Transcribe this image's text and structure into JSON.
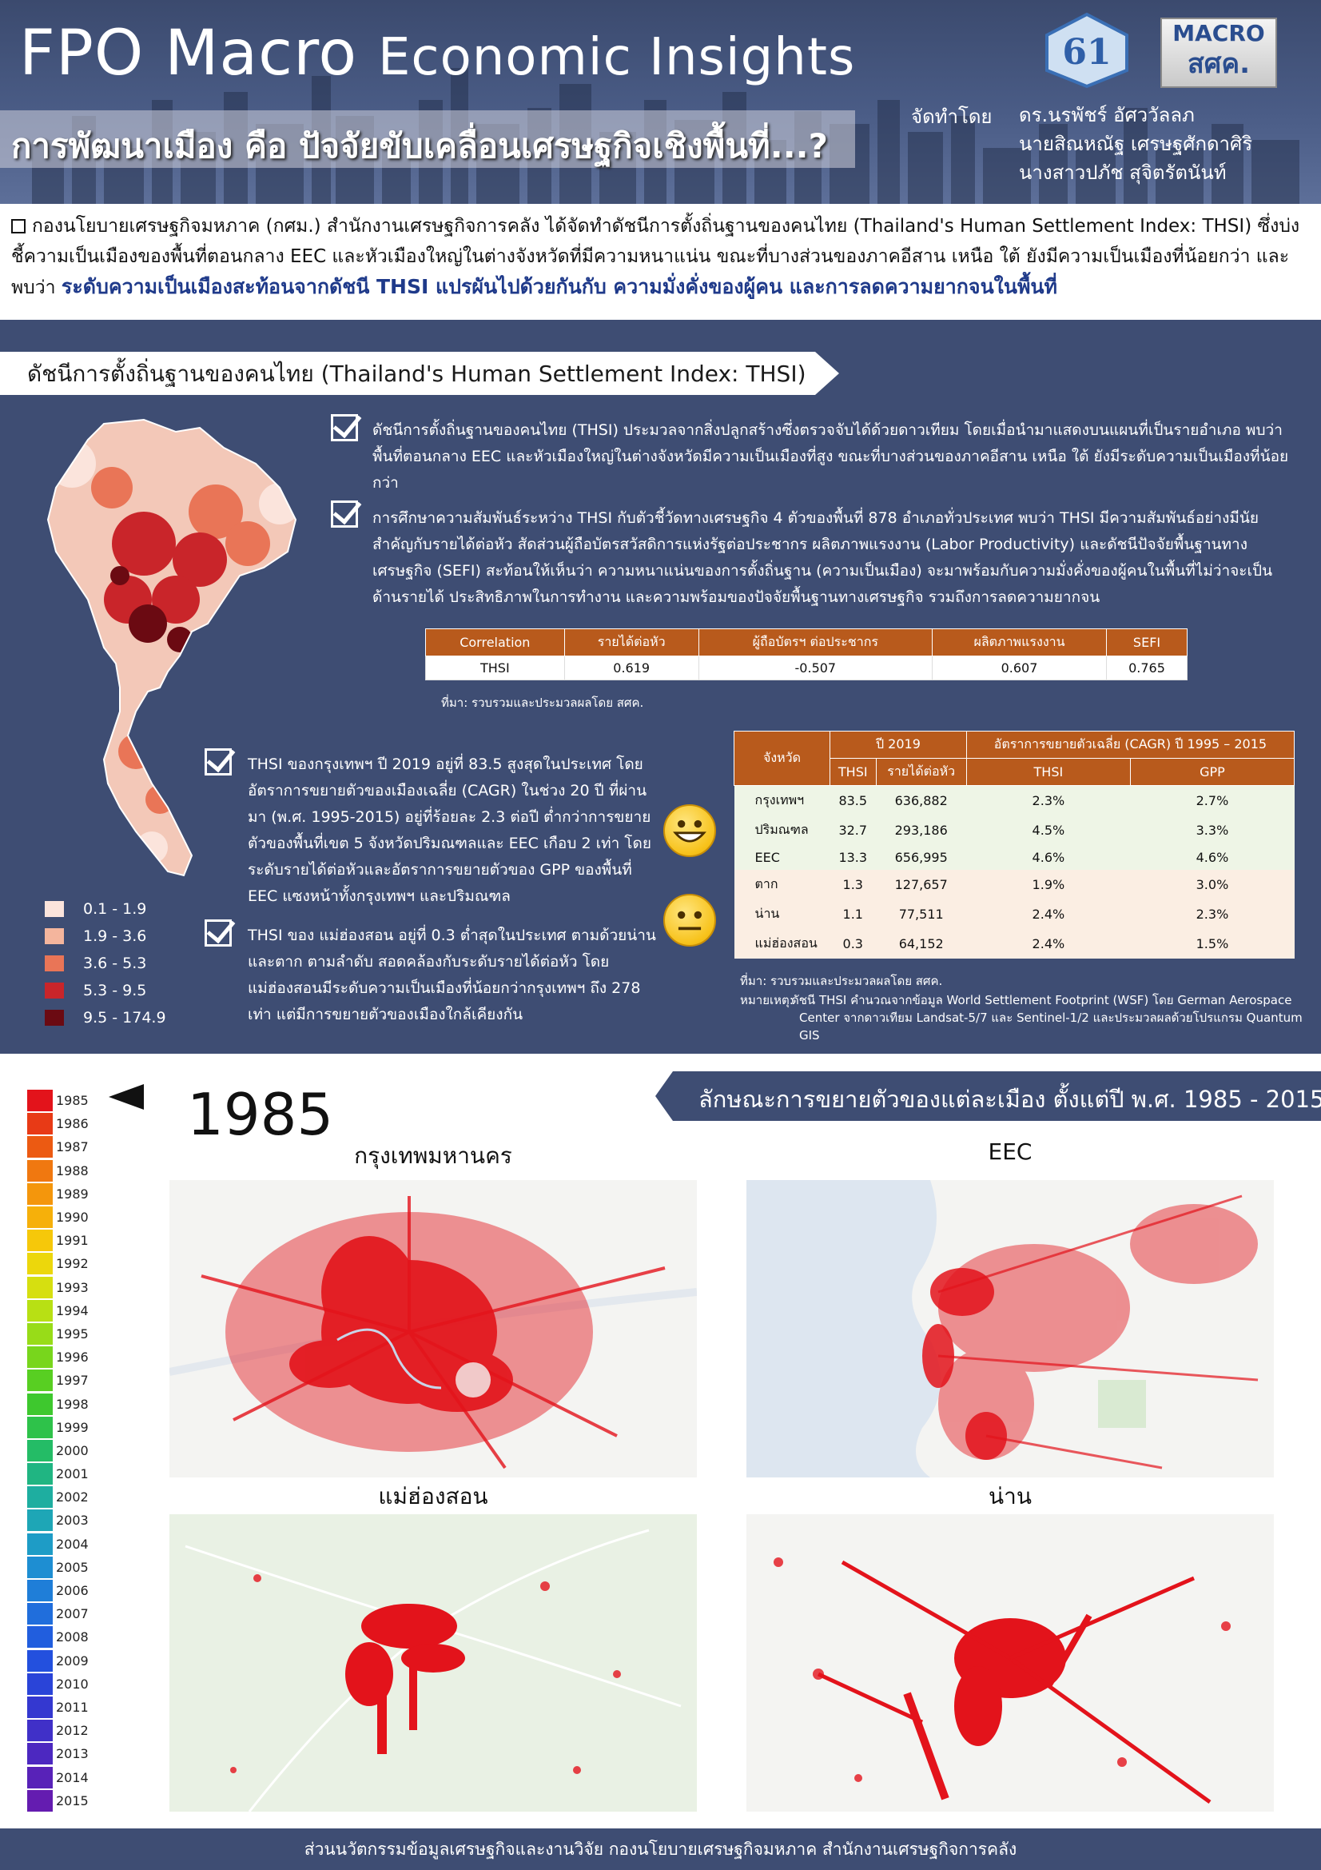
{
  "header": {
    "title_bold": "FPO Macro",
    "title_light": "Economic Insights",
    "subtitle": "การพัฒนาเมือง คือ ปัจจัยขับเคลื่อนเศรษฐกิจเชิงพื้นที่...?",
    "logo_61": "61",
    "logo_macro_top": "MACRO",
    "logo_macro_bottom": "สศค.",
    "by_label": "จัดทำโดย",
    "authors": [
      "ดร.นรพัชร์ อัศววัลลภ",
      "นายสิณหณัฐ เศรษฐศักดาศิริ",
      "นางสาวปภัช สุจิตรัตนันท์"
    ]
  },
  "intro": {
    "text": "กองนโยบายเศรษฐกิจมหภาค (กศม.) สำนักงานเศรษฐกิจการคลัง ได้จัดทำดัชนีการตั้งถิ่นฐานของคนไทย (Thailand's Human Settlement Index: THSI) ซึ่งบ่งชี้ความเป็นเมืองของพื้นที่ตอนกลาง EEC และหัวเมืองใหญ่ในต่างจังหวัดที่มีความหนาแน่น ขณะที่บางส่วนของภาคอีสาน เหนือ ใต้ ยังมีความเป็นเมืองที่น้อยกว่า และพบว่า ",
    "highlight": "ระดับความเป็นเมืองสะท้อนจากดัชนี THSI แปรผันไปด้วยกันกับ ความมั่งคั่งของผู้คน และการลดความยากจนในพื้นที่"
  },
  "section1": {
    "title": "ดัชนีการตั้งถิ่นฐานของคนไทย (Thailand's Human Settlement Index: THSI)",
    "bullet1": "ดัชนีการตั้งถิ่นฐานของคนไทย (THSI) ประมวลจากสิ่งปลูกสร้างซึ่งตรวจจับได้ด้วยดาวเทียม โดยเมื่อนำมาแสดงบนแผนที่เป็นรายอำเภอ พบว่า พื้นที่ตอนกลาง EEC และหัวเมืองใหญ่ในต่างจังหวัดมีความเป็นเมืองที่สูง ขณะที่บางส่วนของภาคอีสาน เหนือ ใต้ ยังมีระดับความเป็นเมืองที่น้อยกว่า",
    "bullet2": "การศึกษาความสัมพันธ์ระหว่าง THSI กับตัวชี้วัดทางเศรษฐกิจ 4 ตัวของพื้นที่ 878 อำเภอทั่วประเทศ พบว่า THSI มีความสัมพันธ์อย่างมีนัยสำคัญกับรายได้ต่อหัว สัดส่วนผู้ถือบัตรสวัสดิการแห่งรัฐต่อประชากร ผลิตภาพแรงงาน (Labor Productivity) และดัชนีปัจจัยพื้นฐานทางเศรษฐกิจ (SEFI) สะท้อนให้เห็นว่า ความหนาแน่นของการตั้งถิ่นฐาน (ความเป็นเมือง) จะมาพร้อมกับความมั่งคั่งของผู้คนในพื้นที่ไม่ว่าจะเป็นด้านรายได้ ประสิทธิภาพในการทำงาน และความพร้อมของปัจจัยพื้นฐานทางเศรษฐกิจ รวมถึงการลดความยากจน",
    "corr_table": {
      "headers": [
        "Correlation",
        "รายได้ต่อหัว",
        "ผู้ถือบัตรฯ ต่อประชากร",
        "ผลิตภาพแรงงาน",
        "SEFI"
      ],
      "row": [
        "THSI",
        "0.619",
        "-0.507",
        "0.607",
        "0.765"
      ]
    },
    "corr_source": "ที่มา: รวบรวมและประมวลผลโดย สศค.",
    "bullet3": "THSI ของกรุงเทพฯ ปี 2019 อยู่ที่ 83.5 สูงสุดในประเทศ โดยอัตราการขยายตัวของเมืองเฉลี่ย (CAGR) ในช่วง 20 ปี ที่ผ่านมา (พ.ศ. 1995-2015) อยู่ที่ร้อยละ 2.3 ต่อปี ต่ำกว่าการขยายตัวของพื้นที่เขต 5 จังหวัดปริมณฑลและ EEC เกือบ 2 เท่า โดยระดับรายได้ต่อหัวและอัตราการขยายตัวของ GPP ของพื้นที่ EEC แซงหน้าทั้งกรุงเทพฯ และปริมณฑล",
    "bullet4": "THSI ของ แม่ฮ่องสอน อยู่ที่ 0.3 ต่ำสุดในประเทศ ตามด้วยน่านและตาก ตามลำดับ สอดคล้องกับระดับรายได้ต่อหัว โดยแม่ฮ่องสอนมีระดับความเป็นเมืองที่น้อยกว่ากรุงเทพฯ ถึง 278 เท่า แต่มีการขยายตัวของเมืองใกล้เคียงกัน",
    "prov_table": {
      "h_province": "จังหวัด",
      "h_2019": "ปี 2019",
      "h_cagr": "อัตราการขยายตัวเฉลี่ย (CAGR) ปี 1995 – 2015",
      "sub": [
        "THSI",
        "รายได้ต่อหัว",
        "THSI",
        "GPP"
      ],
      "rows": [
        [
          "กรุงเทพฯ",
          "83.5",
          "636,882",
          "2.3%",
          "2.7%"
        ],
        [
          "ปริมณฑล",
          "32.7",
          "293,186",
          "4.5%",
          "3.3%"
        ],
        [
          "EEC",
          "13.3",
          "656,995",
          "4.6%",
          "4.6%"
        ],
        [
          "ตาก",
          "1.3",
          "127,657",
          "1.9%",
          "3.0%"
        ],
        [
          "น่าน",
          "1.1",
          "77,511",
          "2.4%",
          "2.3%"
        ],
        [
          "แม่ฮ่องสอน",
          "0.3",
          "64,152",
          "2.4%",
          "1.5%"
        ]
      ]
    },
    "prov_source": "ที่มา: รวบรวมและประมวลผลโดย สศค.",
    "prov_note_label": "หมายเหตุ:",
    "prov_note_1": "ดัชนี THSI คำนวณจากข้อมูล World Settlement Footprint (WSF) โดย German Aerospace",
    "prov_note_2": "Center จากดาวเทียม Landsat-5/7 และ Sentinel-1/2 และประมวลผลด้วยโปรแกรม Quantum GIS",
    "legend": [
      {
        "label": "0.1 - 1.9",
        "color": "#fbe4dc"
      },
      {
        "label": "1.9 - 3.6",
        "color": "#f4b59d"
      },
      {
        "label": "3.6 - 5.3",
        "color": "#e97557"
      },
      {
        "label": "5.3 - 9.5",
        "color": "#c9252a"
      },
      {
        "label": "9.5 - 174.9",
        "color": "#6b0a12"
      }
    ]
  },
  "section2": {
    "banner": "ลักษณะการขยายตัวของแต่ละเมือง ตั้งแต่ปี พ.ศ. 1985 - 2015",
    "current_year": "1985",
    "years": [
      "1985",
      "1986",
      "1987",
      "1988",
      "1989",
      "1990",
      "1991",
      "1992",
      "1993",
      "1994",
      "1995",
      "1996",
      "1997",
      "1998",
      "1999",
      "2000",
      "2001",
      "2002",
      "2003",
      "2004",
      "2005",
      "2006",
      "2007",
      "2008",
      "2009",
      "2010",
      "2011",
      "2012",
      "2013",
      "2014",
      "2015"
    ],
    "year_colors": [
      "#e3131b",
      "#e83a16",
      "#ec5a12",
      "#f07810",
      "#f4960c",
      "#f6b00a",
      "#f6c80a",
      "#ecd70c",
      "#d6df10",
      "#b8e014",
      "#98dc18",
      "#78d61c",
      "#58cf22",
      "#3ec82e",
      "#2ec24a",
      "#24bc66",
      "#20b582",
      "#1eaea0",
      "#1ea6b6",
      "#1e9cc6",
      "#1e8ed2",
      "#1f7ed8",
      "#206edc",
      "#215ede",
      "#2350de",
      "#2a44d8",
      "#3438d0",
      "#4030c8",
      "#4c28c0",
      "#5822b8",
      "#641cb0"
    ],
    "maps": [
      "กรุงเทพมหานคร",
      "EEC",
      "แม่ฮ่องสอน",
      "น่าน"
    ]
  },
  "footer": "ส่วนนวัตกรรมข้อมูลเศรษฐกิจและงานวิจัย   กองนโยบายเศรษฐกิจมหภาค   สำนักงานเศรษฐกิจการคลัง"
}
